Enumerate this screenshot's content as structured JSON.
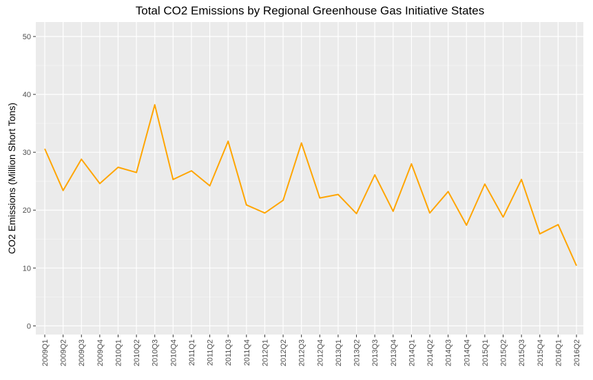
{
  "chart_data": {
    "type": "line",
    "title": "Total CO2 Emissions by Regional Greenhouse Gas Initiative States",
    "xlabel": "",
    "ylabel": "CO2 Emissions (Million Short Tons)",
    "ylim": [
      -1.5,
      52.5
    ],
    "y_ticks": [
      0,
      10,
      20,
      30,
      40,
      50
    ],
    "grid": true,
    "background": "#ebebeb",
    "line_color": "#FFA500",
    "categories": [
      "2009Q1",
      "2009Q2",
      "2009Q3",
      "2009Q4",
      "2010Q1",
      "2010Q2",
      "2010Q3",
      "2010Q4",
      "2011Q1",
      "2011Q2",
      "2011Q3",
      "2011Q4",
      "2012Q1",
      "2012Q2",
      "2012Q3",
      "2012Q4",
      "2013Q1",
      "2013Q2",
      "2013Q3",
      "2013Q4",
      "2014Q1",
      "2014Q2",
      "2014Q3",
      "2014Q4",
      "2015Q1",
      "2015Q2",
      "2015Q3",
      "2015Q4",
      "2016Q1",
      "2016Q2"
    ],
    "values": [
      30.6,
      23.4,
      28.8,
      24.6,
      27.4,
      26.5,
      38.2,
      25.3,
      26.8,
      24.2,
      31.9,
      20.9,
      19.5,
      21.7,
      31.6,
      22.1,
      22.7,
      19.4,
      26.1,
      19.8,
      28.0,
      19.5,
      23.2,
      17.4,
      24.5,
      18.8,
      25.3,
      15.9,
      17.5,
      10.4
    ]
  }
}
